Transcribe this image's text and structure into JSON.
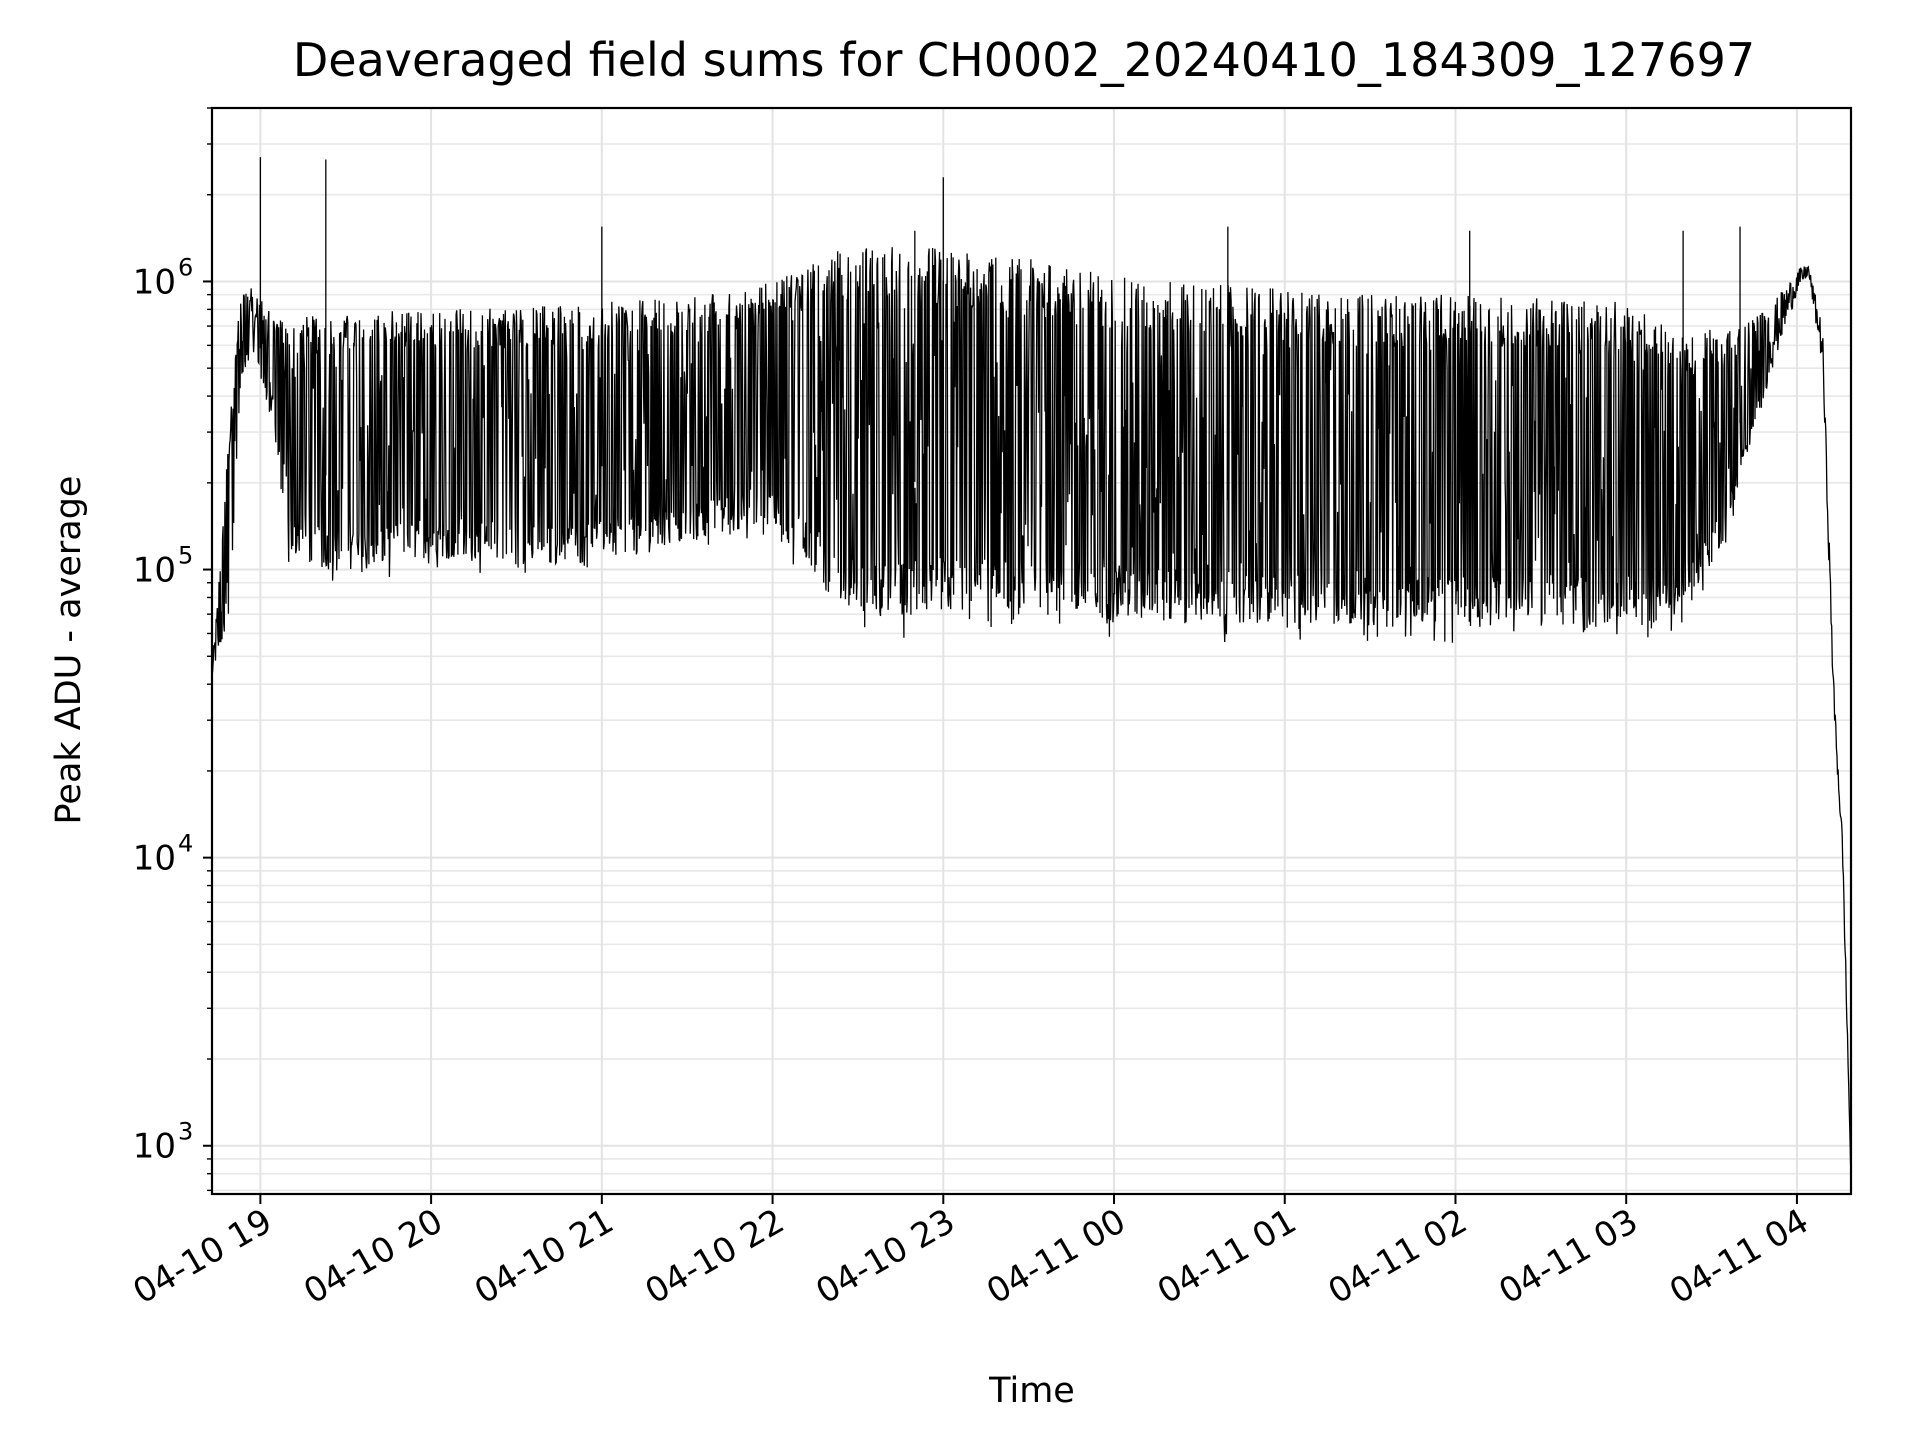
{
  "chart_data": {
    "type": "line",
    "title": "Deaveraged field sums for CH0002_20240410_184309_127697",
    "xlabel": "Time",
    "ylabel": "Peak ADU - average",
    "yscale": "log",
    "ylim": [
      680,
      4000000
    ],
    "xlim": [
      "2024-04-10 18:43",
      "2024-04-11 04:19"
    ],
    "grid": true,
    "x_ticks": [
      {
        "t": "2024-04-10 19:00",
        "label": "04-10 19"
      },
      {
        "t": "2024-04-10 20:00",
        "label": "04-10 20"
      },
      {
        "t": "2024-04-10 21:00",
        "label": "04-10 21"
      },
      {
        "t": "2024-04-10 22:00",
        "label": "04-10 22"
      },
      {
        "t": "2024-04-10 23:00",
        "label": "04-10 23"
      },
      {
        "t": "2024-04-11 00:00",
        "label": "04-11 00"
      },
      {
        "t": "2024-04-11 01:00",
        "label": "04-11 01"
      },
      {
        "t": "2024-04-11 02:00",
        "label": "04-11 02"
      },
      {
        "t": "2024-04-11 03:00",
        "label": "04-11 03"
      },
      {
        "t": "2024-04-11 04:00",
        "label": "04-11 04"
      }
    ],
    "y_ticks": [
      {
        "value": 1000,
        "base": "10",
        "exp": "3"
      },
      {
        "value": 10000,
        "base": "10",
        "exp": "4"
      },
      {
        "value": 100000,
        "base": "10",
        "exp": "5"
      },
      {
        "value": 1000000,
        "base": "10",
        "exp": "6"
      }
    ],
    "series": [
      {
        "color": "#000000",
        "envelope": [
          {
            "t": "2024-04-10 18:43",
            "low": 42000,
            "high": 45000
          },
          {
            "t": "2024-04-10 18:49",
            "low": 60000,
            "high": 300000
          },
          {
            "t": "2024-04-10 18:53",
            "low": 400000,
            "high": 900000
          },
          {
            "t": "2024-04-10 18:57",
            "low": 600000,
            "high": 950000
          },
          {
            "t": "2024-04-10 19:05",
            "low": 280000,
            "high": 750000
          },
          {
            "t": "2024-04-10 19:10",
            "low": 100000,
            "high": 750000
          },
          {
            "t": "2024-04-10 19:30",
            "low": 85000,
            "high": 780000
          },
          {
            "t": "2024-04-10 20:00",
            "low": 100000,
            "high": 800000
          },
          {
            "t": "2024-04-10 20:30",
            "low": 90000,
            "high": 820000
          },
          {
            "t": "2024-04-10 21:00",
            "low": 95000,
            "high": 850000
          },
          {
            "t": "2024-04-10 21:30",
            "low": 110000,
            "high": 880000
          },
          {
            "t": "2024-04-10 22:00",
            "low": 130000,
            "high": 1000000
          },
          {
            "t": "2024-04-10 22:20",
            "low": 70000,
            "high": 1300000
          },
          {
            "t": "2024-04-10 22:40",
            "low": 55000,
            "high": 1350000
          },
          {
            "t": "2024-04-10 23:00",
            "low": 60000,
            "high": 1300000
          },
          {
            "t": "2024-04-10 23:30",
            "low": 60000,
            "high": 1200000
          },
          {
            "t": "2024-04-11 00:00",
            "low": 58000,
            "high": 1050000
          },
          {
            "t": "2024-04-11 00:30",
            "low": 56000,
            "high": 980000
          },
          {
            "t": "2024-04-11 01:00",
            "low": 55000,
            "high": 950000
          },
          {
            "t": "2024-04-11 01:30",
            "low": 55000,
            "high": 900000
          },
          {
            "t": "2024-04-11 02:00",
            "low": 55000,
            "high": 900000
          },
          {
            "t": "2024-04-11 02:30",
            "low": 55000,
            "high": 880000
          },
          {
            "t": "2024-04-11 03:00",
            "low": 55000,
            "high": 850000
          },
          {
            "t": "2024-04-11 03:20",
            "low": 60000,
            "high": 650000
          },
          {
            "t": "2024-04-11 03:35",
            "low": 120000,
            "high": 700000
          },
          {
            "t": "2024-04-11 03:50",
            "low": 450000,
            "high": 800000
          },
          {
            "t": "2024-04-11 04:00",
            "low": 900000,
            "high": 1100000
          },
          {
            "t": "2024-04-11 04:04",
            "low": 1050000,
            "high": 1150000
          },
          {
            "t": "2024-04-11 04:09",
            "low": 500000,
            "high": 700000
          },
          {
            "t": "2024-04-11 04:13",
            "low": 30000,
            "high": 40000
          },
          {
            "t": "2024-04-11 04:16",
            "low": 10000,
            "high": 12000
          },
          {
            "t": "2024-04-11 04:19",
            "low": 700,
            "high": 900
          }
        ],
        "spikes": [
          {
            "t": "2024-04-10 19:00",
            "value": 2700000
          },
          {
            "t": "2024-04-10 19:23",
            "value": 2650000
          },
          {
            "t": "2024-04-10 21:00",
            "value": 1550000
          },
          {
            "t": "2024-04-10 22:50",
            "value": 1500000
          },
          {
            "t": "2024-04-10 23:00",
            "value": 2300000
          },
          {
            "t": "2024-04-11 00:40",
            "value": 1550000
          },
          {
            "t": "2024-04-11 02:05",
            "value": 1500000
          },
          {
            "t": "2024-04-11 03:20",
            "value": 1500000
          },
          {
            "t": "2024-04-11 03:40",
            "value": 1550000
          }
        ]
      }
    ]
  }
}
